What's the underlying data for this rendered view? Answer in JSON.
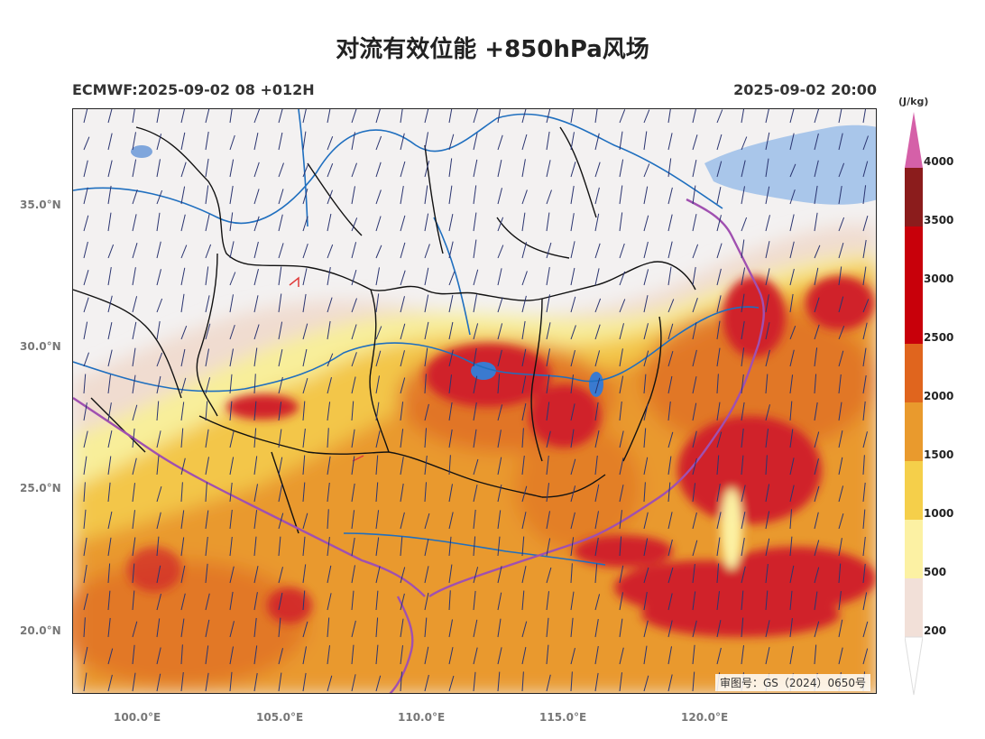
{
  "title": "对流有效位能 +850hPa风场",
  "model_info": "ECMWF:2025-09-02 08 +012H",
  "valid_time": "2025-09-02 20:00",
  "approval_number": "审图号：GS（2024）0650号",
  "axes": {
    "lat_labels": [
      "35.0°N",
      "30.0°N",
      "25.0°N",
      "20.0°N"
    ],
    "lon_labels": [
      "100.0°E",
      "105.0°E",
      "110.0°E",
      "115.0°E",
      "120.0°E"
    ]
  },
  "colorbar": {
    "unit": "(J/kg)",
    "ticks": [
      "4000",
      "3500",
      "3000",
      "2500",
      "2000",
      "1500",
      "1000",
      "500",
      "200"
    ],
    "colors": [
      "#d560a8",
      "#8b1c1c",
      "#c8000a",
      "#e0651e",
      "#e99a2d",
      "#f5cf4a",
      "#fcf1a3",
      "#f2e0d8"
    ]
  },
  "map_colors": {
    "background": "#f3f1f1",
    "low_cape": "#f0dcd0",
    "cape_500": "#f8ee9a",
    "cape_1000": "#f3c64a",
    "cape_1500": "#e9992e",
    "cape_2000": "#df6e25",
    "cape_2500": "#d0222a",
    "river": "#1f6fbf",
    "lake": "#a9c6ea",
    "province_border": "#111111",
    "coast_border": "#a050b0",
    "wind_barb": "#2a3470"
  }
}
